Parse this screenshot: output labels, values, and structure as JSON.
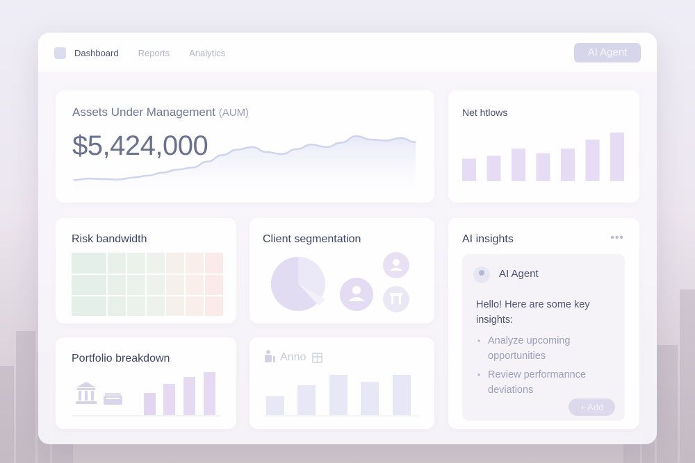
{
  "nav": {
    "items": [
      "Dashboard",
      "Reports",
      "Analytics"
    ],
    "active": "Dashboard",
    "agent_button": "AI Agent"
  },
  "aum": {
    "title": "Assets Under Management",
    "title_suffix": "(AUM)",
    "value": "$5,424,000",
    "trend": [
      5,
      8,
      7,
      6,
      10,
      14,
      20,
      26,
      30,
      42,
      55,
      66,
      71,
      61,
      57,
      67,
      76,
      71,
      80,
      93,
      86,
      84,
      89,
      81
    ]
  },
  "net_flows": {
    "title": "Net htlows",
    "values": [
      38,
      43,
      55,
      47,
      55,
      70,
      82
    ]
  },
  "risk": {
    "title": "Risk bandwidth",
    "colors": [
      "#e5efe9",
      "#e8f0ea",
      "#ebf1eb",
      "#eef2ec",
      "#f6f0ea",
      "#f9eee9",
      "#fbebe8"
    ]
  },
  "segmentation": {
    "title": "Client segmentation",
    "pie_fraction": 0.62,
    "colors": {
      "pie": "#e2dcf2",
      "pie_light": "#ebe9f7",
      "person": "#e4dcf2"
    }
  },
  "portfolio": {
    "title": "Portfolio breakdown",
    "values": [
      32,
      45,
      55,
      62
    ]
  },
  "anno": {
    "title": "Anno",
    "values": [
      27,
      43,
      58,
      48,
      58
    ]
  },
  "insights": {
    "title": "AI insights",
    "agent_name": "AI Agent",
    "greeting": "Hello! Here are some key insights:",
    "bullets": [
      "Analyze upcoming opportunities",
      "Review performannce deviations"
    ],
    "add_button": "+ Add"
  }
}
